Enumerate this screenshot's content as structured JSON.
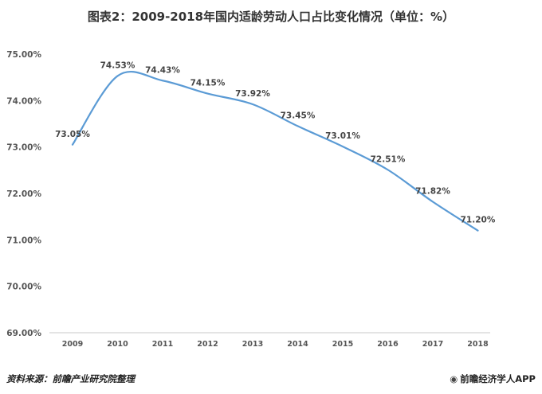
{
  "title": "图表2：2009-2018年国内适龄劳动人口占比变化情况（单位：%）",
  "source": "资料来源：前瞻产业研究院整理",
  "brand": "前瞻经济学人APP",
  "brand_icon": "app-logo-icon",
  "line_color": "#5b9bd5",
  "chart_data": {
    "type": "line",
    "title": "图表2：2009-2018年国内适龄劳动人口占比变化情况（单位：%）",
    "xlabel": "",
    "ylabel": "",
    "categories": [
      "2009",
      "2010",
      "2011",
      "2012",
      "2013",
      "2014",
      "2015",
      "2016",
      "2017",
      "2018"
    ],
    "series": [
      {
        "values": [
          73.05,
          74.53,
          74.43,
          74.15,
          73.92,
          73.45,
          73.01,
          72.51,
          71.82,
          71.2
        ],
        "labels": [
          "73.05%",
          "74.53%",
          "74.43%",
          "74.15%",
          "73.92%",
          "73.45%",
          "73.01%",
          "72.51%",
          "71.82%",
          "71.20%"
        ]
      }
    ],
    "ylim": [
      69,
      75
    ],
    "yticks": [
      "69.00%",
      "70.00%",
      "71.00%",
      "72.00%",
      "73.00%",
      "74.00%",
      "75.00%"
    ],
    "grid": false,
    "smooth": true,
    "legend": "none"
  }
}
